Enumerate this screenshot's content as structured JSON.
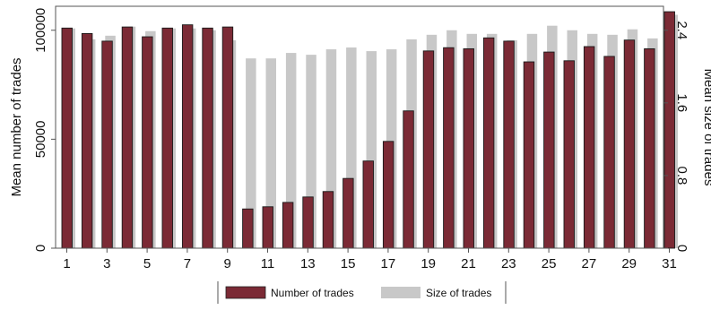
{
  "chart_data": {
    "type": "bar",
    "categories": [
      "1",
      "2",
      "3",
      "4",
      "5",
      "6",
      "7",
      "8",
      "9",
      "10",
      "11",
      "12",
      "13",
      "14",
      "15",
      "16",
      "17",
      "18",
      "19",
      "20",
      "21",
      "22",
      "23",
      "24",
      "25",
      "26",
      "27",
      "28",
      "29",
      "30",
      "31"
    ],
    "series": [
      {
        "name": "Number of trades",
        "axis": "left",
        "color": "#7b2a35",
        "values": [
          101000,
          98500,
          95000,
          101500,
          97000,
          101000,
          102500,
          101000,
          101500,
          18000,
          19000,
          21000,
          23500,
          26000,
          32000,
          40000,
          49000,
          63000,
          90500,
          92000,
          91500,
          96500,
          95000,
          85500,
          90000,
          86000,
          92500,
          88000,
          95500,
          91500,
          108500
        ]
      },
      {
        "name": "Size of trades",
        "axis": "right",
        "color": "#c8c8c8",
        "values": [
          2.42,
          2.3,
          2.34,
          2.44,
          2.39,
          2.42,
          2.42,
          2.4,
          2.29,
          2.09,
          2.09,
          2.15,
          2.13,
          2.19,
          2.21,
          2.17,
          2.19,
          2.3,
          2.35,
          2.4,
          2.36,
          2.36,
          2.29,
          2.36,
          2.45,
          2.4,
          2.36,
          2.35,
          2.41,
          2.31,
          2.57
        ]
      }
    ],
    "xticks": [
      "1",
      "3",
      "5",
      "7",
      "9",
      "11",
      "13",
      "15",
      "17",
      "19",
      "21",
      "23",
      "25",
      "27",
      "29",
      "31"
    ],
    "y_left": {
      "label": "Mean number of trades",
      "ticks": [
        "0",
        "50000",
        "100000"
      ],
      "tick_values": [
        0,
        50000,
        100000
      ],
      "lim": [
        0,
        111000
      ]
    },
    "y_right": {
      "label": "Mean size of trades",
      "ticks": [
        "0",
        "0.8",
        "1.6",
        "2.4"
      ],
      "tick_values": [
        0,
        0.8,
        1.6,
        2.4
      ],
      "lim": [
        0,
        2.664
      ]
    },
    "legend_position": "bottom-center",
    "grid": false
  }
}
